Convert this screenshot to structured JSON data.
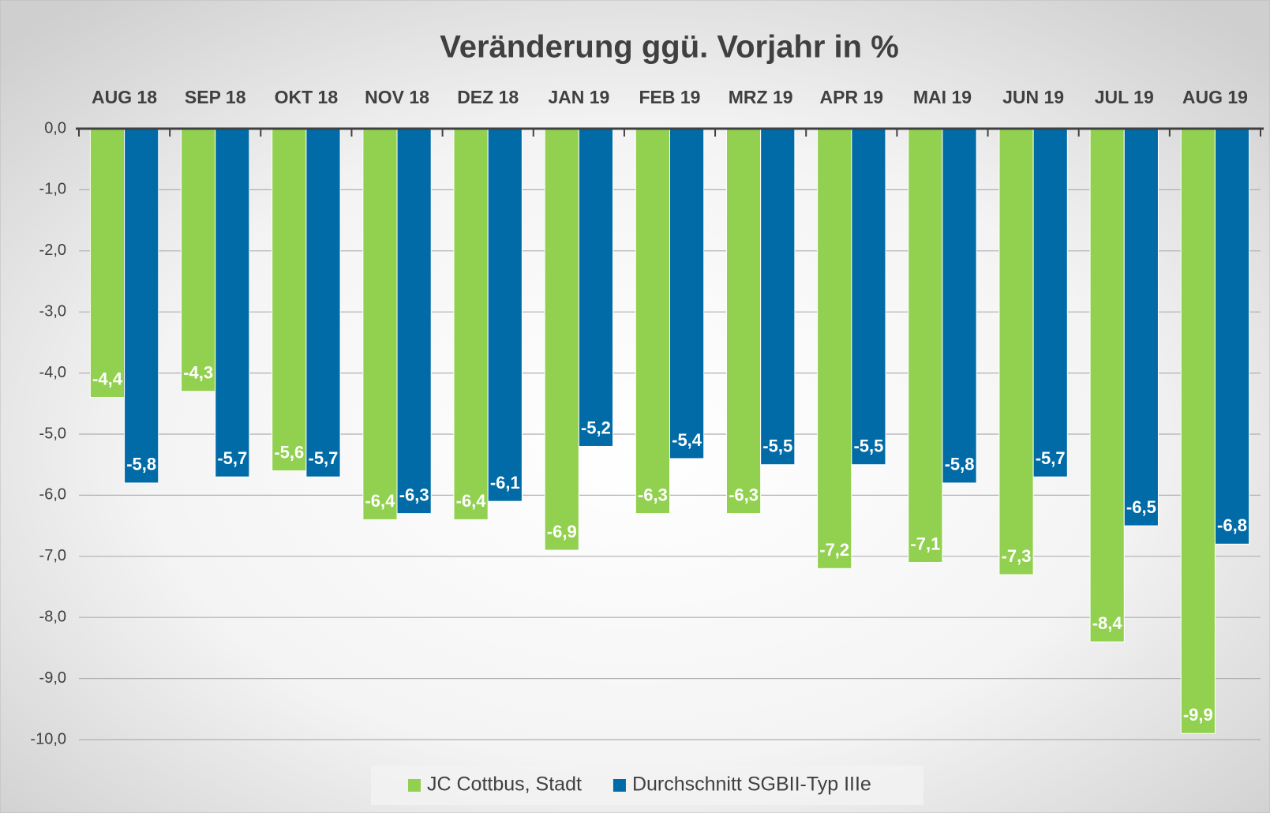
{
  "chart_data": {
    "type": "bar",
    "title": "Veränderung ggü. Vorjahr in %",
    "categories": [
      "AUG 18",
      "SEP 18",
      "OKT 18",
      "NOV 18",
      "DEZ 18",
      "JAN 19",
      "FEB 19",
      "MRZ 19",
      "APR 19",
      "MAI 19",
      "JUN 19",
      "JUL 19",
      "AUG 19"
    ],
    "series": [
      {
        "name": "JC Cottbus, Stadt",
        "color": "#92d050",
        "values": [
          -4.4,
          -4.3,
          -5.6,
          -6.4,
          -6.4,
          -6.9,
          -6.3,
          -6.3,
          -7.2,
          -7.1,
          -7.3,
          -8.4,
          -9.9
        ],
        "value_labels": [
          "-4,4",
          "-4,3",
          "-5,6",
          "-6,4",
          "-6,4",
          "-6,9",
          "-6,3",
          "-6,3",
          "-7,2",
          "-7,1",
          "-7,3",
          "-8,4",
          "-9,9"
        ]
      },
      {
        "name": "Durchschnitt SGBII-Typ IIIe",
        "color": "#006ba6",
        "values": [
          -5.8,
          -5.7,
          -5.7,
          -6.3,
          -6.1,
          -5.2,
          -5.4,
          -5.5,
          -5.5,
          -5.8,
          -5.7,
          -6.5,
          -6.8
        ],
        "value_labels": [
          "-5,8",
          "-5,7",
          "-5,7",
          "-6,3",
          "-6,1",
          "-5,2",
          "-5,4",
          "-5,5",
          "-5,5",
          "-5,8",
          "-5,7",
          "-6,5",
          "-6,8"
        ]
      }
    ],
    "ylim": [
      -10,
      0
    ],
    "yticks": [
      {
        "value": 0,
        "label": "0,0"
      },
      {
        "value": -1,
        "label": "-1,0"
      },
      {
        "value": -2,
        "label": "-2,0"
      },
      {
        "value": -3,
        "label": "-3,0"
      },
      {
        "value": -4,
        "label": "-4,0"
      },
      {
        "value": -5,
        "label": "-5,0"
      },
      {
        "value": -6,
        "label": "-6,0"
      },
      {
        "value": -7,
        "label": "-7,0"
      },
      {
        "value": -8,
        "label": "-8,0"
      },
      {
        "value": -9,
        "label": "-9,0"
      },
      {
        "value": -10,
        "label": "-10,0"
      }
    ],
    "grid": true,
    "legend": "bottom"
  }
}
